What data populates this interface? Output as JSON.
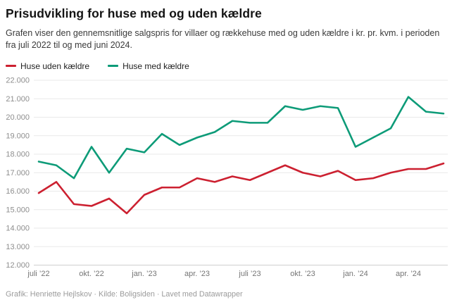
{
  "header": {
    "title": "Prisudvikling for huse med og uden kældre",
    "description": "Grafen viser den gennemsnitlige salgspris for villaer og rækkehuse med og uden kældre i kr. pr. kvm. i perioden fra juli 2022 til og med juni 2024."
  },
  "legend": {
    "items": [
      {
        "label": "Huse uden kældre",
        "color": "#cc2030"
      },
      {
        "label": "Huse med kældre",
        "color": "#0d9b78"
      }
    ]
  },
  "chart_data": {
    "type": "line",
    "title": "Prisudvikling for huse med og uden kældre",
    "ylabel": "kr. pr. kvm.",
    "xlabel": "",
    "grid": "horizontal",
    "ylim": [
      12000,
      22000
    ],
    "y_tick_step": 1000,
    "x": [
      "2022-07",
      "2022-08",
      "2022-09",
      "2022-10",
      "2022-11",
      "2022-12",
      "2023-01",
      "2023-02",
      "2023-03",
      "2023-04",
      "2023-05",
      "2023-06",
      "2023-07",
      "2023-08",
      "2023-09",
      "2023-10",
      "2023-11",
      "2023-12",
      "2024-01",
      "2024-02",
      "2024-03",
      "2024-04",
      "2024-05",
      "2024-06"
    ],
    "x_ticks": [
      {
        "index": 0,
        "label": "juli ’22"
      },
      {
        "index": 3,
        "label": "okt. ’22"
      },
      {
        "index": 6,
        "label": "jan. ’23"
      },
      {
        "index": 9,
        "label": "apr. ’23"
      },
      {
        "index": 12,
        "label": "juli ’23"
      },
      {
        "index": 15,
        "label": "okt. ’23"
      },
      {
        "index": 18,
        "label": "jan. ’24"
      },
      {
        "index": 21,
        "label": "apr. ’24"
      }
    ],
    "series": [
      {
        "name": "Huse uden kældre",
        "color": "#cc2030",
        "values": [
          15900,
          16500,
          15300,
          15200,
          15600,
          14800,
          15800,
          16200,
          16200,
          16700,
          16500,
          16800,
          16600,
          17000,
          17400,
          17000,
          16800,
          17100,
          16600,
          16700,
          17000,
          17200,
          17200,
          17500
        ]
      },
      {
        "name": "Huse med kældre",
        "color": "#0d9b78",
        "values": [
          17600,
          17400,
          16700,
          18400,
          17000,
          18300,
          18100,
          19100,
          18500,
          18900,
          19200,
          19800,
          19700,
          19700,
          20600,
          20400,
          20600,
          20500,
          18400,
          18900,
          19400,
          21100,
          20300,
          20200
        ]
      }
    ],
    "legend_position": "top"
  },
  "footer": {
    "credit": "Grafik: Henriette Hejlskov · Kilde: Boligsiden · Lavet med Datawrapper"
  }
}
